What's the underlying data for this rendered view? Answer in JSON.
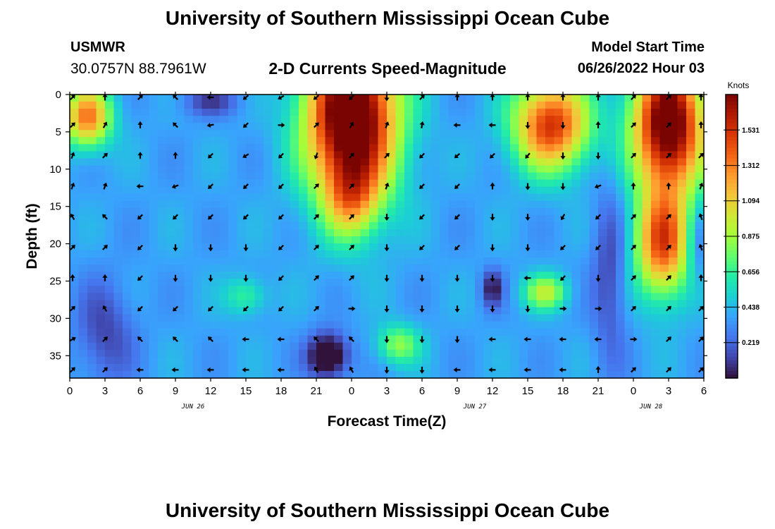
{
  "header": {
    "title": "University of Southern Mississippi Ocean Cube",
    "station_id": "USMWR",
    "station_coords": "30.0757N  88.7961W",
    "model_start_label": "Model Start Time",
    "model_start_value": "06/26/2022 Hour 03"
  },
  "footer": {
    "title": "University of Southern Mississippi Ocean Cube"
  },
  "chart_data": {
    "type": "heatmap",
    "title": "2-D Currents Speed-Magnitude",
    "xlabel": "Forecast Time(Z)",
    "ylabel": "Depth (ft)",
    "x_range": [
      0,
      54
    ],
    "x_units": "hours since 2022-06-26 00Z",
    "x_tick_values": [
      0,
      3,
      6,
      9,
      12,
      15,
      18,
      21,
      24,
      27,
      30,
      33,
      36,
      39,
      42,
      45,
      48,
      51,
      54
    ],
    "x_tick_labels": [
      "0",
      "3",
      "6",
      "9",
      "12",
      "15",
      "18",
      "21",
      "0",
      "3",
      "6",
      "9",
      "12",
      "15",
      "18",
      "21",
      "0",
      "3",
      "6"
    ],
    "date_labels": [
      {
        "x": 10.5,
        "label": "JUN 26"
      },
      {
        "x": 34.5,
        "label": "JUN 27"
      },
      {
        "x": 49.5,
        "label": "JUN 28"
      }
    ],
    "y_range": [
      0,
      38
    ],
    "y_inverted": true,
    "y_tick_values": [
      0,
      5,
      10,
      15,
      20,
      25,
      30,
      35
    ],
    "y_tick_labels": [
      "0",
      "5",
      "10",
      "15",
      "20",
      "25",
      "30",
      "35"
    ],
    "colorbar": {
      "label": "Knots",
      "range": [
        0,
        1.75
      ],
      "tick_values": [
        0.219,
        0.438,
        0.656,
        0.875,
        1.094,
        1.312,
        1.531
      ],
      "tick_labels": [
        "0.219",
        "0.438",
        "0.656",
        "0.875",
        "1.094",
        "1.312",
        "1.531"
      ],
      "colors": [
        "#30123b",
        "#4145ab",
        "#4675ed",
        "#39a2fc",
        "#1bcfd4",
        "#24eca6",
        "#61fc6c",
        "#a4fc3b",
        "#d1e834",
        "#f3c63a",
        "#fe9b2d",
        "#f36315",
        "#d93806",
        "#b11901",
        "#7a0402"
      ]
    },
    "speed_features": [
      {
        "t": 24,
        "d": 3,
        "sx": 3.8,
        "sy": 11,
        "v": 1.7
      },
      {
        "t": 24,
        "d": 14,
        "sx": 2.3,
        "sy": 5,
        "v": 0.5
      },
      {
        "t": 51,
        "d": 4,
        "sx": 3.0,
        "sy": 9,
        "v": 1.55
      },
      {
        "t": 50.5,
        "d": 20,
        "sx": 2.3,
        "sy": 7,
        "v": 1.05
      },
      {
        "t": 41,
        "d": 4,
        "sx": 3.2,
        "sy": 6,
        "v": 1.15
      },
      {
        "t": 1.5,
        "d": 3,
        "sx": 2.0,
        "sy": 4,
        "v": 0.95
      },
      {
        "t": 40.5,
        "d": 26.5,
        "sx": 1.8,
        "sy": 2.3,
        "v": 0.55
      },
      {
        "t": 28,
        "d": 33.5,
        "sx": 1.8,
        "sy": 2.6,
        "v": 0.45
      },
      {
        "t": 15,
        "d": 27,
        "sx": 1.7,
        "sy": 2.5,
        "v": 0.3
      },
      {
        "t": 22,
        "d": 35,
        "sx": 1.7,
        "sy": 3.0,
        "v": -0.6
      },
      {
        "t": 36,
        "d": 26,
        "sx": 0.9,
        "sy": 2.5,
        "v": -0.35
      },
      {
        "t": 12,
        "d": 1,
        "sx": 2.5,
        "sy": 2.0,
        "v": -0.25
      },
      {
        "t": 3,
        "d": 32,
        "sx": 2.5,
        "sy": 7,
        "v": -0.25
      },
      {
        "t": 46,
        "d": 24,
        "sx": 1.5,
        "sy": 12,
        "v": -0.25
      },
      {
        "t": 53.5,
        "d": 20,
        "sx": 1.0,
        "sy": 5,
        "v": -0.2
      }
    ],
    "speed_base": 0.38,
    "vector_times": [
      0,
      3,
      6,
      9,
      12,
      15,
      18,
      21,
      24,
      27,
      30,
      33,
      36,
      39,
      42,
      45,
      48,
      51,
      54
    ],
    "vector_depths": [
      0,
      4.1,
      8.2,
      12.3,
      16.4,
      20.5,
      24.6,
      28.7,
      32.8,
      36.9
    ],
    "vector_angles_deg": [
      [
        45,
        90,
        45,
        135,
        180,
        220,
        210,
        220,
        225,
        270,
        45,
        90,
        90,
        90,
        90,
        90,
        45,
        45,
        90
      ],
      [
        45,
        60,
        90,
        135,
        190,
        225,
        0,
        45,
        60,
        70,
        80,
        180,
        180,
        270,
        270,
        90,
        45,
        45,
        90
      ],
      [
        70,
        45,
        90,
        90,
        225,
        210,
        225,
        250,
        45,
        45,
        225,
        220,
        225,
        230,
        270,
        270,
        45,
        45,
        45
      ],
      [
        70,
        70,
        180,
        200,
        225,
        225,
        225,
        45,
        45,
        70,
        225,
        225,
        90,
        270,
        270,
        200,
        90,
        90,
        70
      ],
      [
        120,
        135,
        225,
        225,
        225,
        225,
        225,
        45,
        45,
        270,
        225,
        225,
        270,
        270,
        240,
        225,
        45,
        45,
        110
      ],
      [
        45,
        45,
        225,
        270,
        270,
        270,
        225,
        45,
        45,
        270,
        225,
        225,
        270,
        270,
        225,
        225,
        45,
        45,
        110
      ],
      [
        90,
        90,
        225,
        270,
        270,
        270,
        225,
        45,
        45,
        270,
        270,
        270,
        270,
        180,
        225,
        270,
        45,
        45,
        90
      ],
      [
        45,
        120,
        225,
        225,
        225,
        225,
        225,
        45,
        0,
        270,
        270,
        270,
        270,
        270,
        0,
        0,
        45,
        45,
        45
      ],
      [
        30,
        45,
        135,
        135,
        135,
        180,
        180,
        135,
        135,
        270,
        270,
        270,
        180,
        180,
        180,
        180,
        0,
        45,
        45
      ],
      [
        45,
        45,
        180,
        180,
        180,
        180,
        180,
        120,
        120,
        270,
        270,
        180,
        180,
        180,
        180,
        90,
        45,
        45,
        45
      ]
    ]
  }
}
